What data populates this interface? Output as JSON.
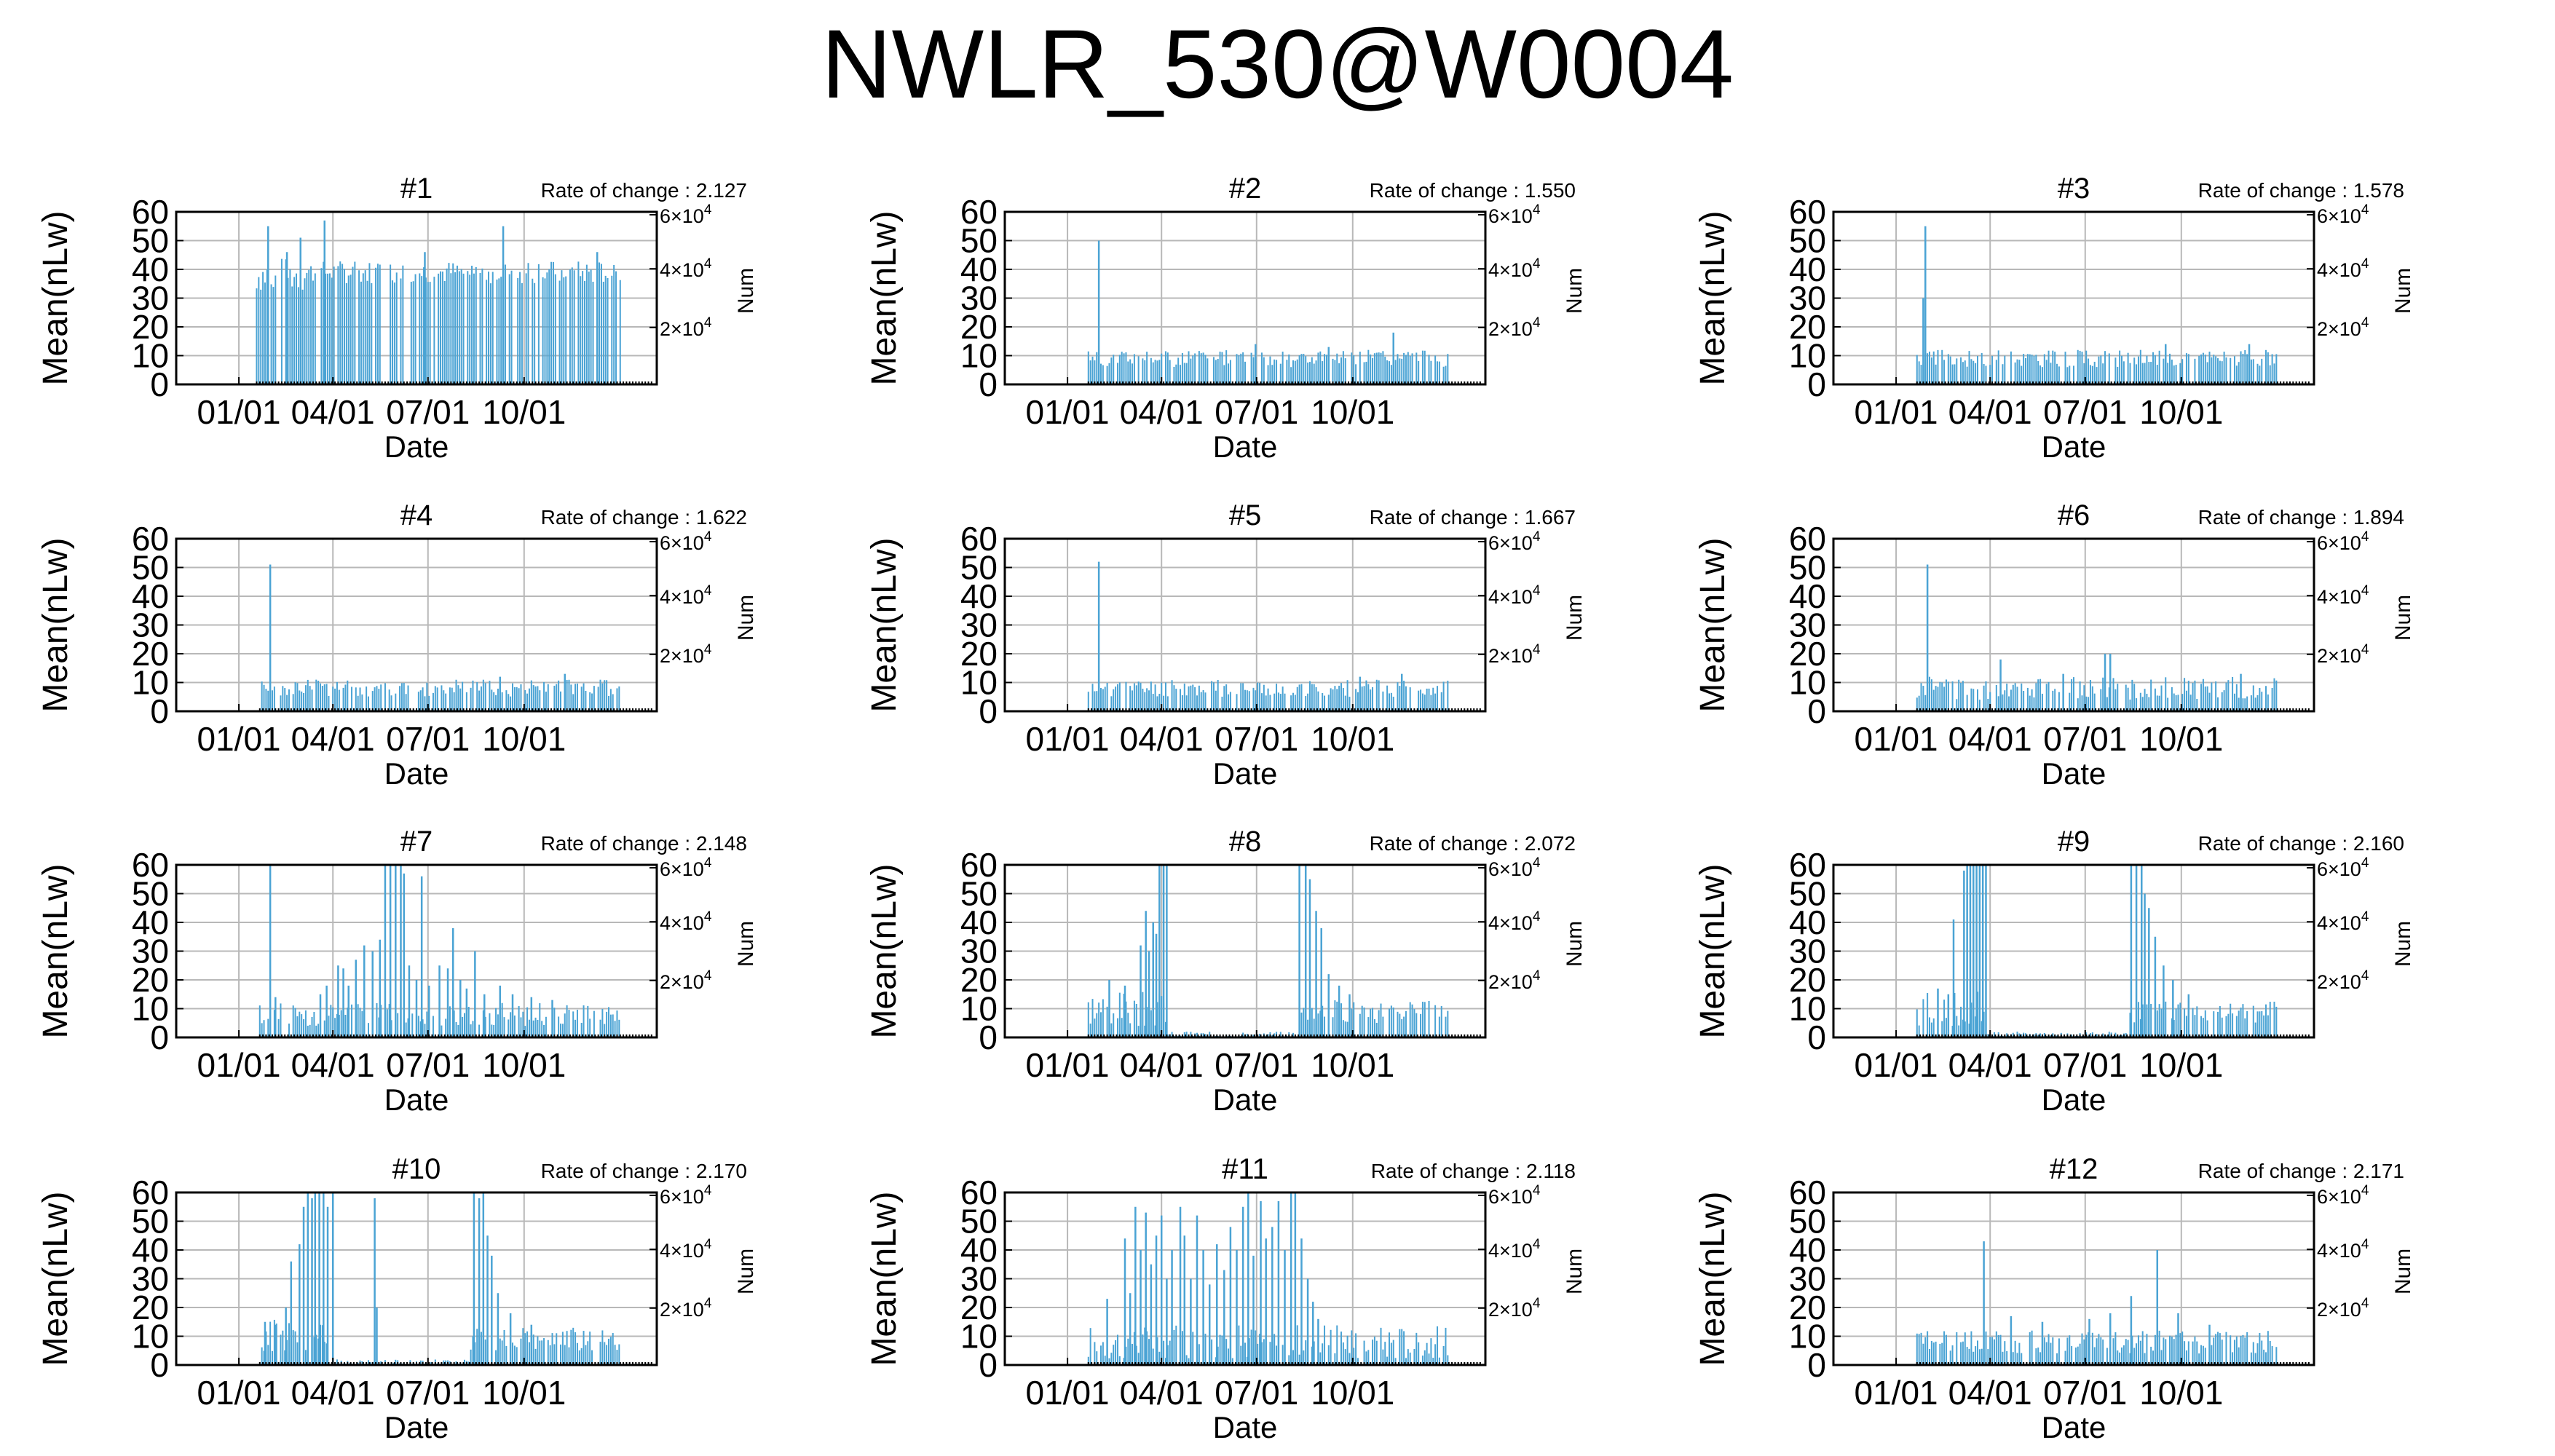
{
  "title": "NWLR_530@W0004",
  "colors": {
    "data": "#4aa3d4",
    "grid": "#b8b8b8",
    "axis": "#000000",
    "num": "#00a0ff"
  },
  "charts_common": {
    "type": "bar",
    "ylabel": "Mean(nLw)",
    "xlabel": "Date",
    "y2label": "Num",
    "ylim": [
      0,
      60
    ],
    "yticks": [
      "0",
      "10",
      "20",
      "30",
      "40",
      "50",
      "60"
    ],
    "xticks": [
      "01/01",
      "04/01",
      "07/01",
      "10/01"
    ],
    "y2ticks_mantissa": [
      "2",
      "4",
      "6"
    ],
    "y2ticks_base": "×10",
    "y2ticks_exponent": "4",
    "xlim_days": [
      -60,
      400
    ],
    "xtick_days": [
      0,
      90,
      181,
      273
    ],
    "grid": true
  },
  "chart_data": [
    {
      "name": "#1",
      "rate_text": "Rate of change : 2.127",
      "start": 17,
      "end": 365,
      "base": 10,
      "amp": 3,
      "segments": [
        [
          17,
          63,
          38,
          6
        ],
        [
          63,
          375,
          39,
          4
        ],
        [
          375,
          400,
          9,
          2
        ]
      ],
      "spikes": [
        [
          28,
          55
        ],
        [
          46,
          46
        ],
        [
          59,
          51
        ],
        [
          82,
          57
        ],
        [
          178,
          46
        ],
        [
          253,
          55
        ],
        [
          343,
          46
        ]
      ]
    },
    {
      "name": "#2",
      "rate_text": "Rate of change : 1.550",
      "start": 20,
      "end": 365,
      "base": 9,
      "amp": 3,
      "spikes": [
        [
          30,
          50
        ],
        [
          312,
          18
        ],
        [
          180,
          14
        ],
        [
          250,
          13
        ]
      ]
    },
    {
      "name": "#3",
      "rate_text": "Rate of change : 1.578",
      "start": 20,
      "end": 365,
      "base": 9,
      "amp": 3,
      "spikes": [
        [
          28,
          55
        ],
        [
          26,
          30
        ],
        [
          258,
          14
        ],
        [
          338,
          14
        ]
      ]
    },
    {
      "name": "#4",
      "rate_text": "Rate of change : 1.622",
      "start": 20,
      "end": 365,
      "base": 8,
      "amp": 3,
      "spikes": [
        [
          30,
          51
        ],
        [
          312,
          13
        ],
        [
          250,
          12
        ]
      ]
    },
    {
      "name": "#5",
      "rate_text": "Rate of change : 1.667",
      "start": 20,
      "end": 365,
      "base": 8,
      "amp": 3,
      "spikes": [
        [
          30,
          52
        ],
        [
          320,
          13
        ],
        [
          280,
          12
        ]
      ]
    },
    {
      "name": "#6",
      "rate_text": "Rate of change : 1.894",
      "start": 20,
      "end": 365,
      "base": 8,
      "amp": 4,
      "spikes": [
        [
          30,
          51
        ],
        [
          100,
          18
        ],
        [
          200,
          20
        ],
        [
          205,
          20
        ],
        [
          160,
          13
        ],
        [
          330,
          13
        ]
      ]
    },
    {
      "name": "#7",
      "rate_text": "Rate of change : 2.148",
      "start": 20,
      "end": 365,
      "base": 8,
      "amp": 4,
      "spikes": [
        [
          30,
          60
        ],
        [
          35,
          14
        ],
        [
          78,
          15
        ],
        [
          84,
          18
        ],
        [
          95,
          25
        ],
        [
          100,
          24
        ],
        [
          105,
          18
        ],
        [
          112,
          27
        ],
        [
          120,
          32
        ],
        [
          128,
          30
        ],
        [
          135,
          34
        ],
        [
          140,
          60
        ],
        [
          145,
          60
        ],
        [
          150,
          60
        ],
        [
          155,
          60
        ],
        [
          158,
          57
        ],
        [
          163,
          25
        ],
        [
          170,
          20
        ],
        [
          175,
          56
        ],
        [
          182,
          18
        ],
        [
          192,
          25
        ],
        [
          200,
          24
        ],
        [
          205,
          38
        ],
        [
          212,
          20
        ],
        [
          218,
          17
        ],
        [
          226,
          30
        ],
        [
          235,
          15
        ],
        [
          250,
          18
        ],
        [
          262,
          15
        ],
        [
          280,
          14
        ],
        [
          300,
          13
        ]
      ]
    },
    {
      "name": "#8",
      "rate_text": "Rate of change : 2.072",
      "start": 20,
      "end": 365,
      "base": 1,
      "amp": 1,
      "segments": [
        [
          20,
          95,
          10,
          6
        ],
        [
          95,
          222,
          1,
          1
        ],
        [
          222,
          365,
          9,
          4
        ]
      ],
      "spikes": [
        [
          40,
          20
        ],
        [
          55,
          18
        ],
        [
          70,
          32
        ],
        [
          75,
          44
        ],
        [
          78,
          30
        ],
        [
          82,
          40
        ],
        [
          85,
          36
        ],
        [
          88,
          60
        ],
        [
          92,
          60
        ],
        [
          95,
          60
        ],
        [
          222,
          60
        ],
        [
          228,
          60
        ],
        [
          232,
          55
        ],
        [
          238,
          44
        ],
        [
          243,
          38
        ],
        [
          250,
          22
        ],
        [
          260,
          18
        ],
        [
          270,
          15
        ]
      ]
    },
    {
      "name": "#9",
      "rate_text": "Rate of change : 2.160",
      "start": 20,
      "end": 365,
      "base": 1,
      "amp": 1,
      "segments": [
        [
          20,
          85,
          10,
          6
        ],
        [
          85,
          222,
          1,
          1
        ],
        [
          222,
          365,
          9,
          4
        ]
      ],
      "spikes": [
        [
          40,
          17
        ],
        [
          50,
          15
        ],
        [
          55,
          41
        ],
        [
          65,
          58
        ],
        [
          68,
          60
        ],
        [
          71,
          60
        ],
        [
          74,
          60
        ],
        [
          77,
          60
        ],
        [
          80,
          60
        ],
        [
          83,
          60
        ],
        [
          86,
          60
        ],
        [
          225,
          60
        ],
        [
          230,
          60
        ],
        [
          235,
          60
        ],
        [
          238,
          50
        ],
        [
          242,
          45
        ],
        [
          248,
          35
        ],
        [
          256,
          25
        ],
        [
          265,
          20
        ],
        [
          280,
          15
        ]
      ]
    },
    {
      "name": "#10",
      "rate_text": "Rate of change : 2.170",
      "start": 20,
      "end": 365,
      "base": 1,
      "amp": 1,
      "segments": [
        [
          20,
          85,
          10,
          6
        ],
        [
          85,
          222,
          1,
          1
        ],
        [
          222,
          365,
          9,
          4
        ]
      ],
      "spikes": [
        [
          25,
          15
        ],
        [
          35,
          14
        ],
        [
          45,
          20
        ],
        [
          50,
          36
        ],
        [
          58,
          42
        ],
        [
          62,
          55
        ],
        [
          66,
          60
        ],
        [
          70,
          58
        ],
        [
          73,
          60
        ],
        [
          77,
          60
        ],
        [
          81,
          60
        ],
        [
          85,
          55
        ],
        [
          90,
          60
        ],
        [
          130,
          58
        ],
        [
          132,
          20
        ],
        [
          225,
          60
        ],
        [
          230,
          58
        ],
        [
          234,
          60
        ],
        [
          238,
          45
        ],
        [
          242,
          38
        ],
        [
          248,
          25
        ],
        [
          260,
          18
        ],
        [
          280,
          14
        ]
      ]
    },
    {
      "name": "#11",
      "rate_text": "Rate of change : 2.118",
      "start": 20,
      "end": 365,
      "base": 8,
      "amp": 6,
      "spikes": [
        [
          38,
          23
        ],
        [
          55,
          44
        ],
        [
          60,
          25
        ],
        [
          65,
          55
        ],
        [
          70,
          40
        ],
        [
          75,
          53
        ],
        [
          80,
          35
        ],
        [
          85,
          45
        ],
        [
          90,
          52
        ],
        [
          95,
          30
        ],
        [
          100,
          40
        ],
        [
          108,
          55
        ],
        [
          112,
          45
        ],
        [
          118,
          30
        ],
        [
          124,
          52
        ],
        [
          130,
          40
        ],
        [
          136,
          28
        ],
        [
          143,
          42
        ],
        [
          150,
          33
        ],
        [
          156,
          48
        ],
        [
          162,
          40
        ],
        [
          168,
          55
        ],
        [
          173,
          60
        ],
        [
          178,
          38
        ],
        [
          185,
          57
        ],
        [
          190,
          44
        ],
        [
          196,
          48
        ],
        [
          202,
          57
        ],
        [
          208,
          40
        ],
        [
          214,
          60
        ],
        [
          218,
          60
        ],
        [
          224,
          44
        ],
        [
          230,
          30
        ],
        [
          235,
          22
        ],
        [
          240,
          16
        ]
      ]
    },
    {
      "name": "#12",
      "rate_text": "Rate of change : 2.171",
      "start": 20,
      "end": 365,
      "base": 8,
      "amp": 4,
      "spikes": [
        [
          84,
          43
        ],
        [
          110,
          17
        ],
        [
          140,
          15
        ],
        [
          185,
          16
        ],
        [
          205,
          18
        ],
        [
          225,
          24
        ],
        [
          250,
          40
        ],
        [
          270,
          18
        ],
        [
          300,
          14
        ]
      ]
    }
  ]
}
